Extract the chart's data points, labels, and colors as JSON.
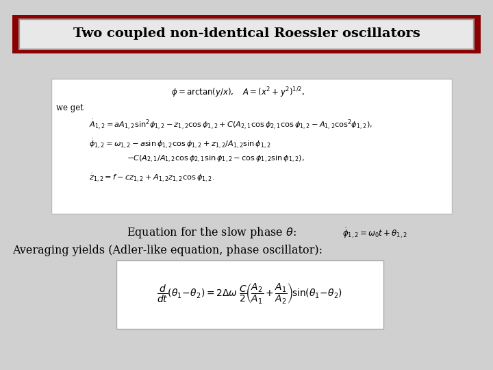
{
  "title": "Two coupled non-identical Roessler oscillators",
  "title_fontsize": 14,
  "title_border_color": "#8B0000",
  "bg_color": "#d0d0d0",
  "font_color": "#000000",
  "eq_fontsize": 8.5,
  "text_fontsize": 11,
  "slow_phase_label": "Equation for the slow phase θ:",
  "averaging_label": "Averaging yields (Adler-like equation, phase oscillator):"
}
